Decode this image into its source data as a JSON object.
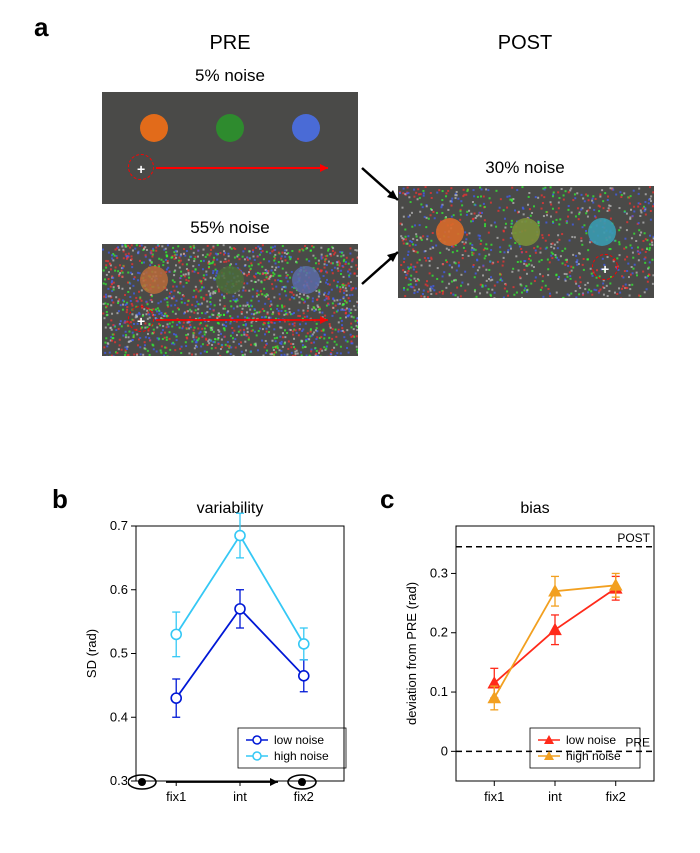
{
  "labels": {
    "a": "a",
    "b": "b",
    "c": "c",
    "pre": "PRE",
    "post": "POST",
    "noise5": "5% noise",
    "noise55": "55% noise",
    "noise30": "30% noise"
  },
  "panel_a": {
    "bg_color_low": "#4a4a48",
    "bg_color_high": "#4a4a48",
    "dot_orange": "#e26b1a",
    "dot_green": "#2e8b2e",
    "dot_blue": "#4a6bd6",
    "dot_orange_mid": "#d86a2a",
    "dot_green_mid": "#7a8f3a",
    "dot_blue_mid": "#3a9bb0",
    "arrow_color": "#ff0000",
    "fix_color": "#ff0000"
  },
  "chart_b": {
    "title": "variability",
    "ylabel": "SD (rad)",
    "ylim": [
      0.3,
      0.7
    ],
    "yticks": [
      0.3,
      0.4,
      0.5,
      0.6,
      0.7
    ],
    "xticks": [
      "fix1",
      "int",
      "fix2"
    ],
    "series": [
      {
        "name": "low noise",
        "color": "#0018d6",
        "values": [
          0.43,
          0.57,
          0.465
        ],
        "err": [
          0.03,
          0.03,
          0.025
        ]
      },
      {
        "name": "high noise",
        "color": "#35c8f5",
        "values": [
          0.53,
          0.685,
          0.515
        ],
        "err": [
          0.035,
          0.035,
          0.025
        ]
      }
    ],
    "marker": "circle",
    "marker_size": 5,
    "line_width": 1.8
  },
  "chart_c": {
    "title": "bias",
    "ylabel": "deviation from PRE (rad)",
    "ylim": [
      -0.05,
      0.38
    ],
    "yticks": [
      0,
      0.1,
      0.2,
      0.3
    ],
    "xticks": [
      "fix1",
      "int",
      "fix2"
    ],
    "series": [
      {
        "name": "low noise",
        "color": "#ff2a1a",
        "values": [
          0.115,
          0.205,
          0.275
        ],
        "err": [
          0.025,
          0.025,
          0.02
        ]
      },
      {
        "name": "high noise",
        "color": "#f2a020",
        "values": [
          0.09,
          0.27,
          0.28
        ],
        "err": [
          0.02,
          0.025,
          0.02
        ]
      }
    ],
    "marker": "triangle",
    "marker_size": 6,
    "line_width": 1.8,
    "hlines": [
      {
        "y": 0,
        "label": "PRE"
      },
      {
        "y": 0.345,
        "label": "POST"
      }
    ]
  },
  "colors": {
    "axis": "#000000",
    "bg": "#ffffff"
  }
}
